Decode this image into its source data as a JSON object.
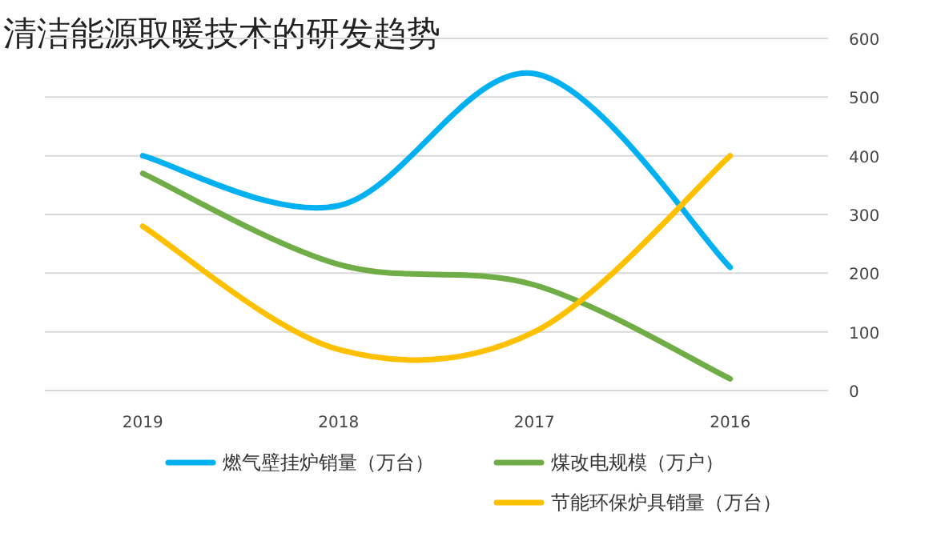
{
  "chart_data": {
    "type": "line",
    "title": "清洁能源取暖技术的研发趋势",
    "categories": [
      "2019",
      "2018",
      "2017",
      "2016"
    ],
    "series": [
      {
        "name": "煤改电规模（万户）",
        "color": "#70ad47",
        "values": [
          370,
          215,
          180,
          20
        ]
      },
      {
        "name": "燃气壁挂炉销量（万台）",
        "color": "#00b0f0",
        "values": [
          400,
          315,
          540,
          210
        ]
      },
      {
        "name": "节能环保炉具销量（万台）",
        "color": "#ffc000",
        "values": [
          280,
          70,
          100,
          400
        ]
      }
    ],
    "ylim": [
      0,
      600
    ],
    "yticks": [
      0,
      100,
      200,
      300,
      400,
      500,
      600
    ],
    "grid": "y",
    "legend": "bottom",
    "marker": "none",
    "line_style": "solid"
  }
}
